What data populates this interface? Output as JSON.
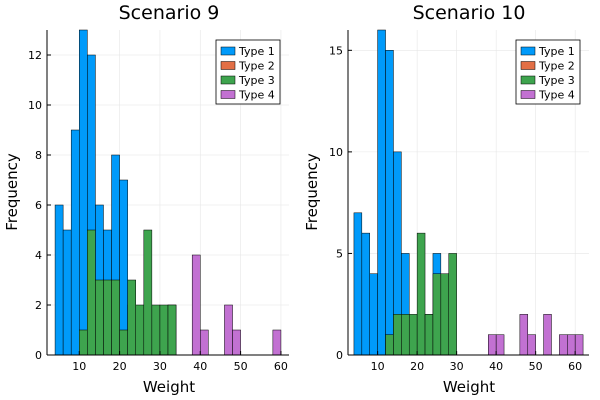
{
  "figure": {
    "colors": {
      "Type 1": "#009AFA",
      "Type 2": "#E26F46",
      "Type 3": "#3EA44E",
      "Type 4": "#C271D2"
    },
    "legend_position": "top-right"
  },
  "chart_data": [
    {
      "type": "bar",
      "title": "Scenario 9",
      "xlabel": "Weight",
      "ylabel": "Frequency",
      "xlim": [
        2,
        62
      ],
      "ylim": [
        0,
        13
      ],
      "xticks": [
        10,
        20,
        30,
        40,
        50,
        60
      ],
      "yticks": [
        0,
        2,
        4,
        6,
        8,
        10,
        12
      ],
      "grid": true,
      "legend": [
        "Type 1",
        "Type 2",
        "Type 3",
        "Type 4"
      ],
      "series": [
        {
          "name": "Type 1",
          "bin_edges": [
            4,
            6,
            8,
            10,
            12,
            14,
            16,
            18,
            20,
            22,
            24,
            26,
            28,
            30,
            32,
            34,
            36
          ],
          "values": [
            6,
            5,
            9,
            13,
            12,
            6,
            5,
            8,
            7,
            2,
            0,
            0,
            0,
            0,
            2,
            0
          ]
        },
        {
          "name": "Type 2",
          "bin_edges": [],
          "values": []
        },
        {
          "name": "Type 3",
          "bin_edges": [
            10,
            12,
            14,
            16,
            18,
            20,
            22,
            24,
            26,
            28,
            30,
            32,
            34
          ],
          "values": [
            1,
            5,
            3,
            3,
            3,
            1,
            3,
            2,
            5,
            2,
            2,
            2
          ]
        },
        {
          "name": "Type 4",
          "bin_edges": [
            38,
            40,
            42,
            44,
            46,
            48,
            50,
            52,
            54,
            56,
            58,
            60
          ],
          "values": [
            4,
            1,
            0,
            0,
            2,
            1,
            0,
            0,
            0,
            0,
            1
          ]
        }
      ]
    },
    {
      "type": "bar",
      "title": "Scenario 10",
      "xlabel": "Weight",
      "ylabel": "Frequency",
      "xlim": [
        2.5,
        63.5
      ],
      "ylim": [
        0,
        16
      ],
      "xticks": [
        10,
        20,
        30,
        40,
        50,
        60
      ],
      "yticks": [
        0,
        5,
        10,
        15
      ],
      "grid": true,
      "legend": [
        "Type 1",
        "Type 2",
        "Type 3",
        "Type 4"
      ],
      "series": [
        {
          "name": "Type 1",
          "bin_edges": [
            4,
            6,
            8,
            10,
            12,
            14,
            16,
            18,
            20,
            22,
            24,
            26,
            28
          ],
          "values": [
            7,
            6,
            4,
            16,
            15,
            10,
            5,
            1,
            1,
            2,
            5,
            2
          ]
        },
        {
          "name": "Type 2",
          "bin_edges": [],
          "values": []
        },
        {
          "name": "Type 3",
          "bin_edges": [
            12,
            14,
            16,
            18,
            20,
            22,
            24,
            26,
            28,
            30
          ],
          "values": [
            1,
            2,
            2,
            2,
            6,
            2,
            4,
            4,
            5
          ]
        },
        {
          "name": "Type 4",
          "bin_edges": [
            38,
            40,
            42,
            44,
            46,
            48,
            50,
            52,
            54,
            56,
            58,
            60,
            62
          ],
          "values": [
            1,
            1,
            0,
            0,
            2,
            1,
            0,
            2,
            0,
            1,
            1,
            1
          ]
        }
      ]
    }
  ]
}
